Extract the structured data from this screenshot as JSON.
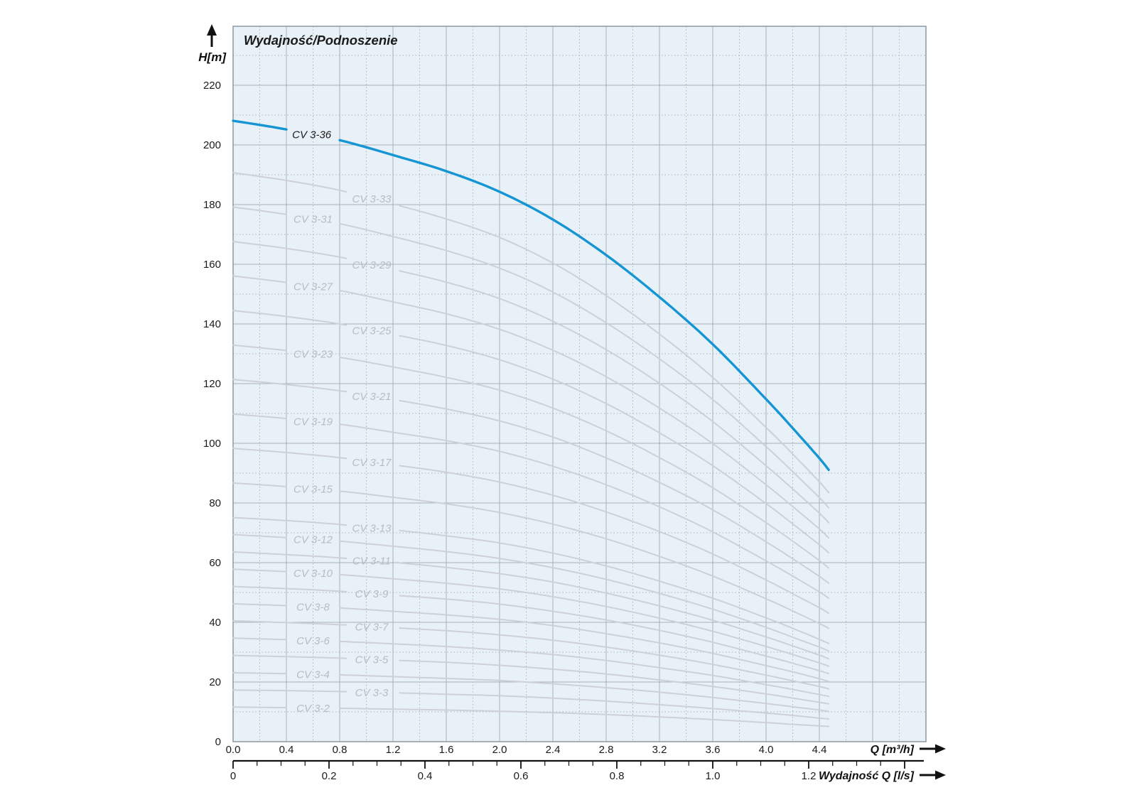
{
  "title": "Wydajność/Podnoszenie",
  "y_axis": {
    "label": "H[m]",
    "tick_values": [
      0,
      20,
      40,
      60,
      80,
      100,
      120,
      140,
      160,
      180,
      200,
      220
    ],
    "max": 240
  },
  "x_axis_m3h": {
    "label": "Q [m³/h]",
    "tick_labels": [
      "0.0",
      "0.4",
      "0.8",
      "1.2",
      "1.6",
      "2.0",
      "2.4",
      "2.8",
      "3.2",
      "3.6",
      "4.0",
      "4.4"
    ],
    "tick_step": 0.4,
    "axis_max": 5.2
  },
  "x_axis_ls": {
    "label": "Wydajność Q [l/s]",
    "tick_labels": [
      "0",
      "0.2",
      "0.4",
      "0.6",
      "0.8",
      "1.0",
      "1.2"
    ],
    "tick_step": 0.2,
    "minor_step": 0.05,
    "last_tick": 1.4
  },
  "colors": {
    "plot_bg": "#e9f1f8",
    "grid_major": "#a6afb9",
    "grid_minor": "#aab2bb",
    "border": "#8d97a1",
    "curve_gray": "#cdd1d6",
    "curve_label_gray": "#b6bcc4",
    "highlight_blue": "#1695d4",
    "text": "#1b1b1b",
    "axis_black": "#111111"
  },
  "chart_data": {
    "type": "line",
    "title": "Wydajność/Podnoszenie",
    "xlabel": "Q [m³/h]",
    "ylabel": "H[m]",
    "x2label": "Wydajność Q [l/s]",
    "xlim": [
      0,
      5.2
    ],
    "ylim": [
      0,
      240
    ],
    "grid": {
      "x_major": 0.4,
      "x_minor": 0.2,
      "y_major": 20,
      "y_minor": 10
    },
    "legend_position": "on-curve-labels",
    "x": [
      0,
      0.4,
      0.8,
      1.2,
      1.6,
      2.0,
      2.4,
      2.8,
      3.2,
      3.6,
      4.0,
      4.2,
      4.4,
      4.47
    ],
    "series": [
      {
        "name": "CV 3-36",
        "stages": 36,
        "highlight": true,
        "label_q": 0.59,
        "values": [
          208.1,
          205.2,
          201.6,
          196.6,
          191.2,
          184.3,
          175.0,
          163.1,
          149.0,
          133.2,
          114.8,
          105.1,
          95.0,
          91.1
        ]
      },
      {
        "name": "CV 3-33",
        "stages": 33,
        "highlight": false,
        "label_q": 1.04,
        "values": [
          190.7,
          188.1,
          184.8,
          180.2,
          175.2,
          169.0,
          160.4,
          149.5,
          136.6,
          122.1,
          105.3,
          96.4,
          87.1,
          83.5
        ]
      },
      {
        "name": "CV 3-31",
        "stages": 31,
        "highlight": false,
        "label_q": 0.6,
        "values": [
          179.2,
          176.7,
          173.6,
          169.3,
          164.6,
          158.7,
          150.7,
          140.4,
          128.3,
          114.7,
          98.9,
          90.5,
          81.8,
          78.4
        ]
      },
      {
        "name": "CV 3-29",
        "stages": 29,
        "highlight": false,
        "label_q": 1.04,
        "values": [
          167.6,
          165.3,
          162.4,
          158.3,
          154.0,
          148.5,
          140.9,
          131.4,
          120.1,
          107.3,
          92.5,
          84.7,
          76.6,
          73.4
        ]
      },
      {
        "name": "CV 3-27",
        "stages": 27,
        "highlight": false,
        "label_q": 0.6,
        "values": [
          156.1,
          153.9,
          151.2,
          147.4,
          143.4,
          138.2,
          131.2,
          122.3,
          111.8,
          99.9,
          86.1,
          78.8,
          71.3,
          68.3
        ]
      },
      {
        "name": "CV 3-25",
        "stages": 25,
        "highlight": false,
        "label_q": 1.04,
        "values": [
          144.5,
          142.5,
          140.0,
          136.5,
          132.8,
          128.0,
          121.5,
          113.3,
          103.5,
          92.5,
          79.8,
          73.0,
          66.0,
          63.3
        ]
      },
      {
        "name": "CV 3-23",
        "stages": 23,
        "highlight": false,
        "label_q": 0.6,
        "values": [
          132.9,
          131.1,
          128.8,
          125.6,
          122.1,
          117.8,
          111.8,
          104.2,
          95.2,
          85.1,
          73.4,
          67.2,
          60.7,
          58.2
        ]
      },
      {
        "name": "CV 3-21",
        "stages": 21,
        "highlight": false,
        "label_q": 1.04,
        "values": [
          121.4,
          119.7,
          117.6,
          114.7,
          111.5,
          107.5,
          102.1,
          95.1,
          86.9,
          77.7,
          67.0,
          61.3,
          55.4,
          53.1
        ]
      },
      {
        "name": "CV 3-19",
        "stages": 19,
        "highlight": false,
        "label_q": 0.6,
        "values": [
          109.8,
          108.3,
          106.4,
          103.7,
          100.9,
          97.3,
          92.3,
          86.1,
          78.7,
          70.3,
          60.6,
          55.5,
          50.2,
          48.1
        ]
      },
      {
        "name": "CV 3-17",
        "stages": 17,
        "highlight": false,
        "label_q": 1.04,
        "values": [
          98.3,
          96.9,
          95.2,
          92.8,
          90.3,
          87.0,
          82.6,
          77.0,
          70.4,
          62.9,
          54.2,
          49.6,
          44.9,
          43.0
        ]
      },
      {
        "name": "CV 3-15",
        "stages": 15,
        "highlight": false,
        "label_q": 0.6,
        "values": [
          86.7,
          85.5,
          84.0,
          81.9,
          79.7,
          76.8,
          72.9,
          68.0,
          62.1,
          55.5,
          47.9,
          43.8,
          39.6,
          38.0
        ]
      },
      {
        "name": "CV 3-13",
        "stages": 13,
        "highlight": false,
        "label_q": 1.04,
        "values": [
          75.1,
          74.1,
          72.8,
          71.0,
          69.0,
          66.6,
          63.2,
          58.9,
          53.8,
          48.1,
          41.5,
          38.0,
          34.3,
          32.9
        ]
      },
      {
        "name": "CV 3-12",
        "stages": 12,
        "highlight": false,
        "label_q": 0.6,
        "values": [
          69.4,
          68.4,
          67.2,
          65.5,
          63.7,
          61.4,
          58.3,
          54.4,
          49.7,
          44.4,
          38.3,
          35.0,
          31.7,
          30.4
        ]
      },
      {
        "name": "CV 3-11",
        "stages": 11,
        "highlight": false,
        "label_q": 1.04,
        "values": [
          63.6,
          62.7,
          61.6,
          60.1,
          58.4,
          56.3,
          53.5,
          49.8,
          45.5,
          40.7,
          35.1,
          32.1,
          29.0,
          27.8
        ]
      },
      {
        "name": "CV 3-10",
        "stages": 10,
        "highlight": false,
        "label_q": 0.6,
        "values": [
          57.8,
          57.0,
          56.0,
          54.6,
          53.1,
          51.2,
          48.6,
          45.3,
          41.4,
          37.0,
          31.9,
          29.2,
          26.4,
          25.3
        ]
      },
      {
        "name": "CV 3-9",
        "stages": 9,
        "highlight": false,
        "label_q": 1.04,
        "values": [
          52.0,
          51.3,
          50.4,
          49.1,
          47.8,
          46.1,
          43.7,
          40.8,
          37.3,
          33.3,
          28.7,
          26.3,
          23.8,
          22.8
        ]
      },
      {
        "name": "CV 3-8",
        "stages": 8,
        "highlight": false,
        "label_q": 0.6,
        "values": [
          46.2,
          45.6,
          44.8,
          43.7,
          42.5,
          41.0,
          38.9,
          36.2,
          33.1,
          29.6,
          25.5,
          23.4,
          21.1,
          20.2
        ]
      },
      {
        "name": "CV 3-7",
        "stages": 7,
        "highlight": false,
        "label_q": 1.04,
        "values": [
          40.5,
          39.9,
          39.2,
          38.2,
          37.2,
          35.8,
          34.0,
          31.7,
          29.0,
          25.9,
          22.3,
          20.4,
          18.5,
          17.7
        ]
      },
      {
        "name": "CV 3-6",
        "stages": 6,
        "highlight": false,
        "label_q": 0.6,
        "values": [
          34.7,
          34.2,
          33.6,
          32.8,
          31.9,
          30.7,
          29.2,
          27.2,
          24.8,
          22.2,
          19.1,
          17.5,
          15.8,
          15.2
        ]
      },
      {
        "name": "CV 3-5",
        "stages": 5,
        "highlight": false,
        "label_q": 1.04,
        "values": [
          28.9,
          28.5,
          28.0,
          27.3,
          26.6,
          25.6,
          24.3,
          22.7,
          20.7,
          18.5,
          16.0,
          14.6,
          13.2,
          12.7
        ]
      },
      {
        "name": "CV 3-4",
        "stages": 4,
        "highlight": false,
        "label_q": 0.6,
        "values": [
          23.1,
          22.8,
          22.4,
          21.8,
          21.2,
          20.5,
          19.4,
          18.1,
          16.6,
          14.8,
          12.8,
          11.7,
          10.6,
          10.1
        ]
      },
      {
        "name": "CV 3-3",
        "stages": 3,
        "highlight": false,
        "label_q": 1.04,
        "values": [
          17.3,
          17.1,
          16.8,
          16.4,
          15.9,
          15.4,
          14.6,
          13.6,
          12.4,
          11.1,
          9.6,
          8.8,
          7.9,
          7.6
        ]
      },
      {
        "name": "CV 3-2",
        "stages": 2,
        "highlight": false,
        "label_q": 0.6,
        "values": [
          11.6,
          11.4,
          11.2,
          10.9,
          10.6,
          10.2,
          9.7,
          9.1,
          8.3,
          7.4,
          6.4,
          5.8,
          5.3,
          5.1
        ]
      }
    ]
  }
}
